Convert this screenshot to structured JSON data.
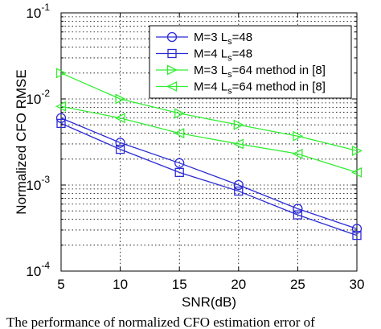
{
  "chart_data": {
    "type": "line",
    "xlabel": "SNR(dB)",
    "ylabel": "Normalized CFO RMSE",
    "x": [
      5,
      10,
      15,
      20,
      25,
      30
    ],
    "x_ticks": [
      "5",
      "10",
      "15",
      "20",
      "25",
      "30"
    ],
    "xlim": [
      5,
      30
    ],
    "ylim": [
      0.0001,
      0.1
    ],
    "yscale": "log",
    "y_ticks": [
      {
        "value": 0.1,
        "base": "10",
        "exp": "-1"
      },
      {
        "value": 0.01,
        "base": "10",
        "exp": "-2"
      },
      {
        "value": 0.001,
        "base": "10",
        "exp": "-3"
      },
      {
        "value": 0.0001,
        "base": "10",
        "exp": "-4"
      }
    ],
    "grid": true,
    "legend_position": "top-right",
    "series": [
      {
        "name": "M=3 L_s=48",
        "legend_parts": [
          "M=3 L",
          "s",
          "=48"
        ],
        "color": "#2b2bd6",
        "marker": "circle",
        "values": [
          0.006,
          0.0031,
          0.0018,
          0.001,
          0.00053,
          0.00031
        ]
      },
      {
        "name": "M=4 L_s=48",
        "legend_parts": [
          "M=4 L",
          "s",
          "=48"
        ],
        "color": "#2b2bd6",
        "marker": "square",
        "values": [
          0.0052,
          0.0026,
          0.0014,
          0.00085,
          0.00045,
          0.00026
        ]
      },
      {
        "name": "M=3 L_s=64 method in [8]",
        "legend_parts": [
          "M=3 L",
          "s",
          "=64 method in [8]"
        ],
        "color": "#33ee33",
        "marker": "triangle-right",
        "values": [
          0.02,
          0.01,
          0.0068,
          0.005,
          0.0037,
          0.0025
        ]
      },
      {
        "name": "M=4 L_s=64 method in [8]",
        "legend_parts": [
          "M=4 L",
          "s",
          "=64 method in [8]"
        ],
        "color": "#33ee33",
        "marker": "triangle-left",
        "values": [
          0.0082,
          0.006,
          0.004,
          0.003,
          0.0023,
          0.0014
        ]
      }
    ]
  },
  "caption": "The performance of normalized CFO estimation error of"
}
